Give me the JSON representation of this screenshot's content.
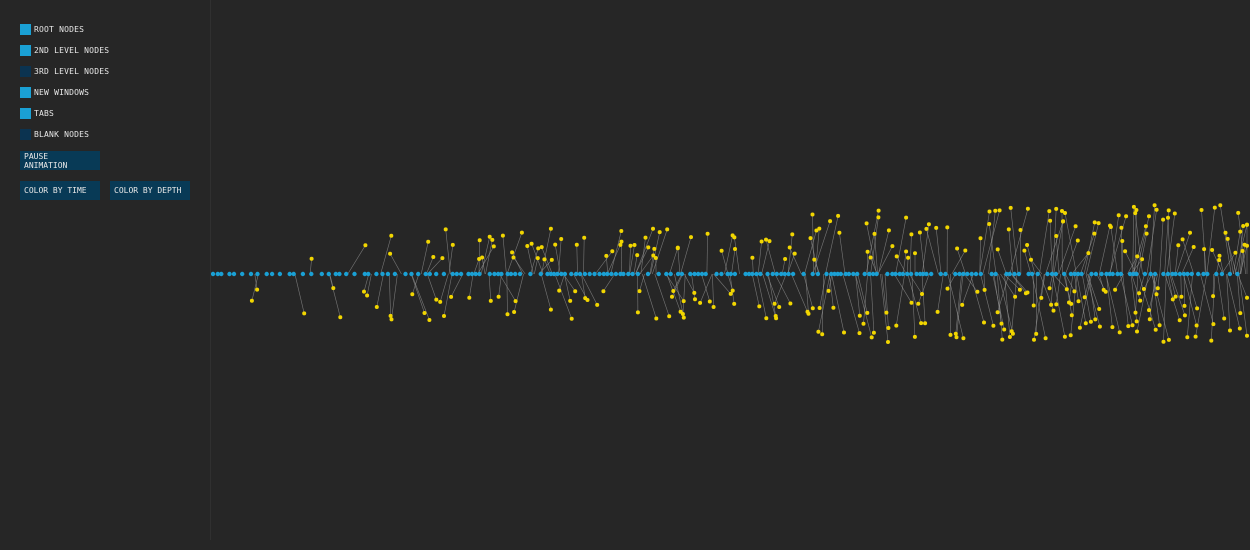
{
  "legend": [
    {
      "label": "ROOT NODES",
      "color": "#1aa0d4"
    },
    {
      "label": "2ND LEVEL NODES",
      "color": "#1aa0d4"
    },
    {
      "label": "3RD LEVEL NODES",
      "color": "#0b3350"
    },
    {
      "label": "NEW WINDOWS",
      "color": "#1aa0d4"
    },
    {
      "label": "TABS",
      "color": "#1aa0d4"
    },
    {
      "label": "BLANK NODES",
      "color": "#0b3350"
    }
  ],
  "buttons": {
    "pause": "PAUSE ANIMATION",
    "color_time": "COLOR BY TIME",
    "color_depth": "COLOR BY DEPTH"
  },
  "colors": {
    "root": "#1aa0d4",
    "child": "#f2d600",
    "link": "#9a9a9a",
    "background": "#262626"
  }
}
